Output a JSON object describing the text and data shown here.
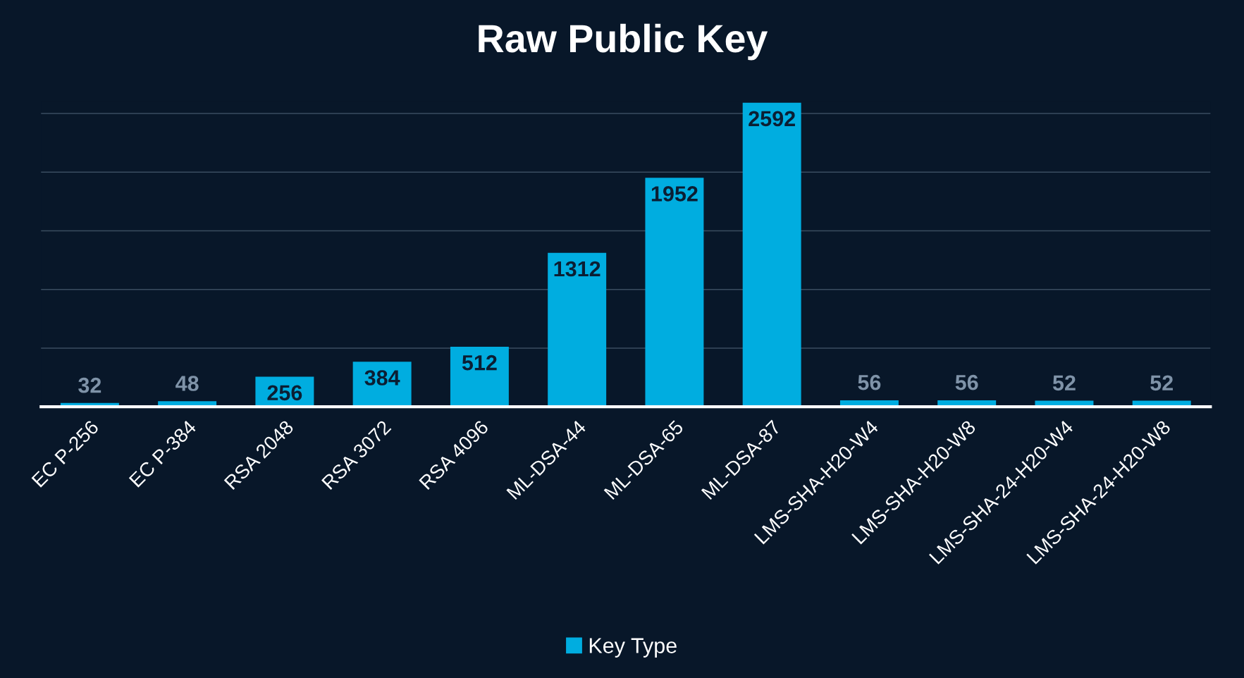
{
  "chart_data": {
    "type": "bar",
    "title": "Raw Public Key",
    "categories": [
      "EC P-256",
      "EC P-384",
      "RSA 2048",
      "RSA 3072",
      "RSA 4096",
      "ML-DSA-44",
      "ML-DSA-65",
      "ML-DSA-87",
      "LMS-SHA-H20-W4",
      "LMS-SHA-H20-W8",
      "LMS-SHA-24-H20-W4",
      "LMS-SHA-24-H20-W8"
    ],
    "series": [
      {
        "name": "Key Type",
        "color": "#00ade0",
        "values": [
          32,
          48,
          256,
          384,
          512,
          1312,
          1952,
          2592,
          56,
          56,
          52,
          52
        ]
      }
    ],
    "ylim": [
      0,
      2600
    ],
    "yticks": [
      {
        "value": 0,
        "label": null
      },
      {
        "value": 500,
        "label": null
      },
      {
        "value": 1000,
        "label": null
      },
      {
        "value": 1500,
        "label": null
      },
      {
        "value": 2000,
        "label": null
      },
      {
        "value": 2500,
        "label": null
      }
    ],
    "tick_labels": "x",
    "grid": "y",
    "data_labels": true,
    "legend": "bottom"
  }
}
